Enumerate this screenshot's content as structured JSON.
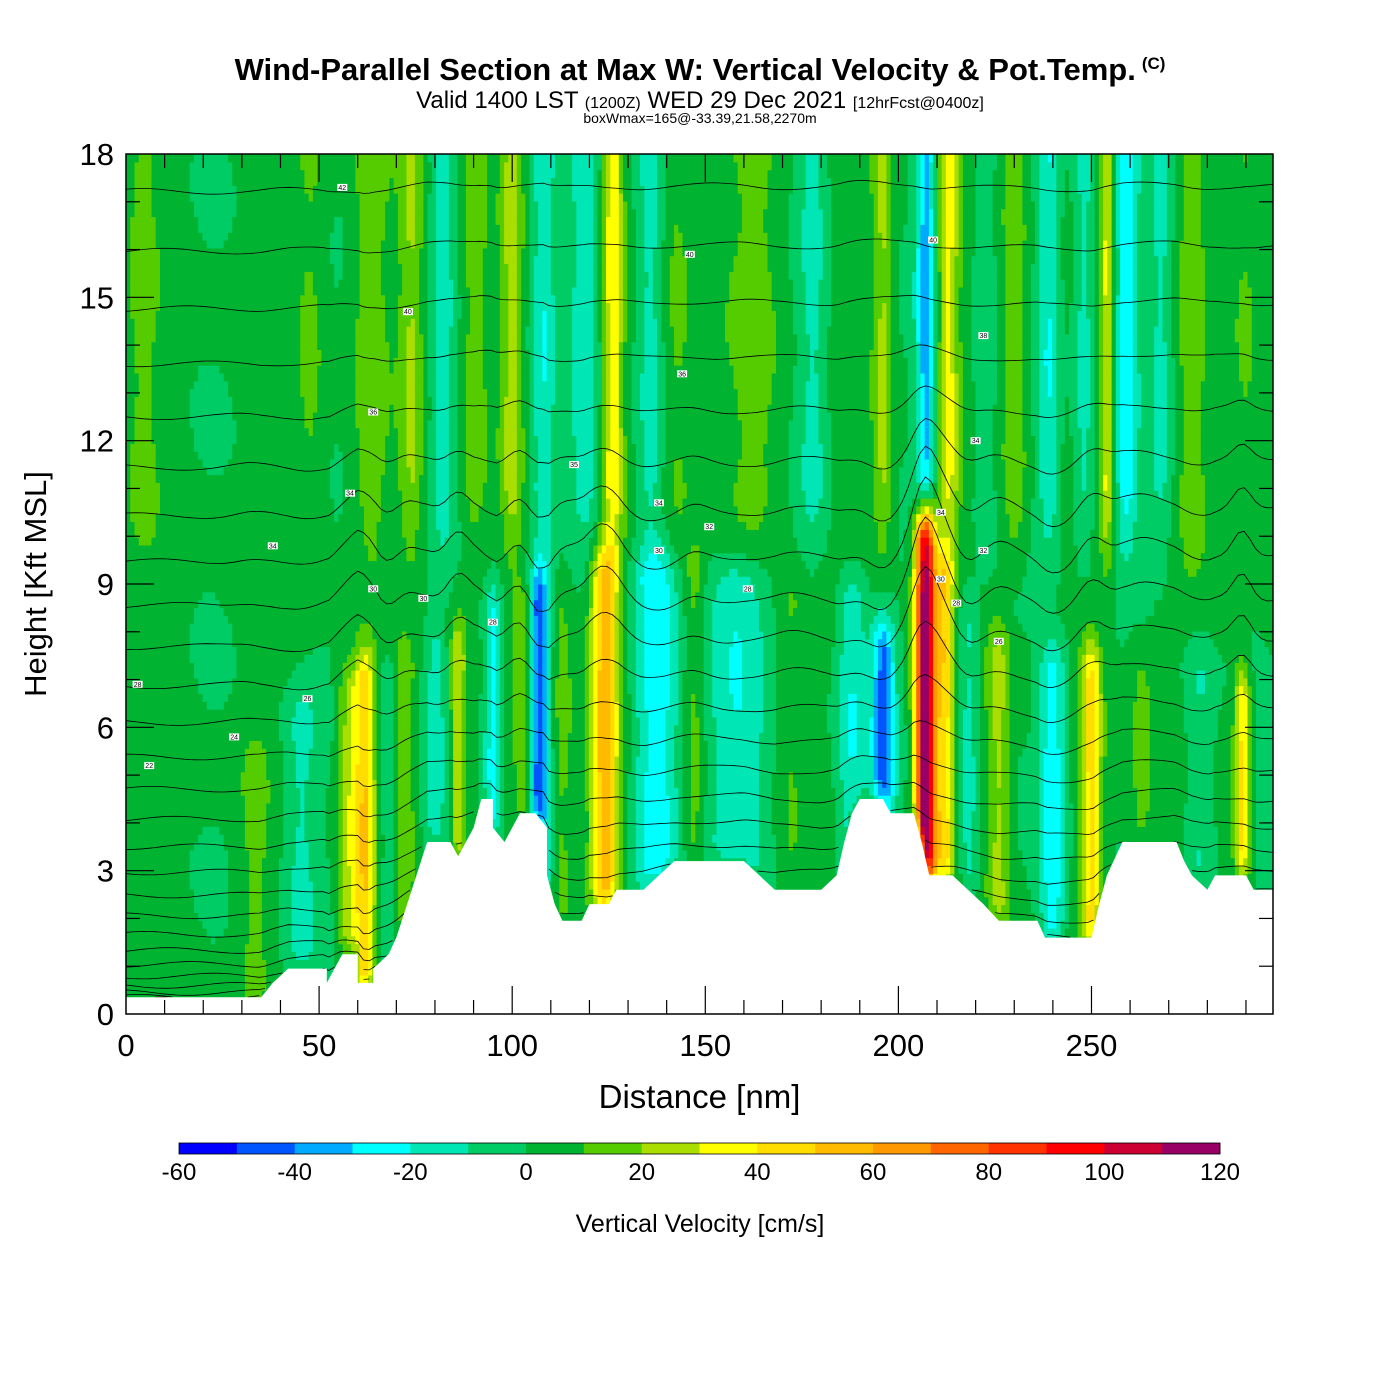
{
  "chart_data": {
    "type": "heatmap",
    "title": "Wind-Parallel Section at Max W: Vertical Velocity & Pot.Temp.",
    "copyright_mark": "(C)",
    "subtitle_main": "Valid 1400 LST",
    "subtitle_utc": "(1200Z)",
    "subtitle_date": "WED 29 Dec 2021",
    "subtitle_run": "[12hrFcst@0400z]",
    "box_info": "boxWmax=165@-33.39,21.58,2270m",
    "xlabel": "Distance [nm]",
    "ylabel": "Height [Kft MSL]",
    "xlim": [
      0,
      297
    ],
    "ylim": [
      0,
      18
    ],
    "xticks": [
      "0",
      "50",
      "100",
      "150",
      "200",
      "250"
    ],
    "yticks": [
      "0",
      "3",
      "6",
      "9",
      "12",
      "15",
      "18"
    ],
    "colorbar": {
      "label": "Vertical Velocity [cm/s]",
      "ticks": [
        "-60",
        "-40",
        "-20",
        "0",
        "20",
        "40",
        "60",
        "80",
        "100",
        "120"
      ],
      "levels": [
        -60,
        -50,
        -40,
        -30,
        -20,
        -10,
        0,
        10,
        20,
        30,
        40,
        50,
        60,
        70,
        80,
        90,
        100,
        110,
        120
      ],
      "colors": [
        "#0000ff",
        "#0055ff",
        "#00aaff",
        "#00ffff",
        "#00e6b4",
        "#00cc66",
        "#00b432",
        "#55cc00",
        "#aadd00",
        "#ffff00",
        "#ffdd00",
        "#ffbb00",
        "#ff9900",
        "#ff6600",
        "#ff3300",
        "#ff0000",
        "#cc0033",
        "#990066"
      ]
    },
    "terrain_kft": [
      [
        0,
        0.35
      ],
      [
        30,
        0.35
      ],
      [
        35,
        0.35
      ],
      [
        38,
        0.65
      ],
      [
        42,
        0.95
      ],
      [
        52,
        0.95
      ],
      [
        52,
        0.65
      ],
      [
        54,
        0.95
      ],
      [
        56,
        1.25
      ],
      [
        60,
        1.25
      ],
      [
        60,
        0.65
      ],
      [
        64,
        0.65
      ],
      [
        64,
        0.95
      ],
      [
        68,
        1.25
      ],
      [
        70,
        1.6
      ],
      [
        74,
        2.6
      ],
      [
        78,
        3.6
      ],
      [
        84,
        3.6
      ],
      [
        86,
        3.3
      ],
      [
        88,
        3.6
      ],
      [
        90,
        3.9
      ],
      [
        92,
        4.5
      ],
      [
        95,
        4.5
      ],
      [
        95,
        3.9
      ],
      [
        98,
        3.6
      ],
      [
        102,
        4.2
      ],
      [
        106,
        4.2
      ],
      [
        109,
        3.9
      ],
      [
        109,
        2.9
      ],
      [
        111,
        2.3
      ],
      [
        113,
        1.95
      ],
      [
        118,
        1.95
      ],
      [
        120,
        2.3
      ],
      [
        125,
        2.3
      ],
      [
        127,
        2.6
      ],
      [
        134,
        2.6
      ],
      [
        138,
        2.9
      ],
      [
        142,
        3.2
      ],
      [
        160,
        3.2
      ],
      [
        164,
        2.9
      ],
      [
        168,
        2.6
      ],
      [
        180,
        2.6
      ],
      [
        184,
        2.9
      ],
      [
        186,
        3.6
      ],
      [
        188,
        4.2
      ],
      [
        190,
        4.5
      ],
      [
        196,
        4.5
      ],
      [
        198,
        4.2
      ],
      [
        204,
        4.2
      ],
      [
        206,
        3.6
      ],
      [
        208,
        2.9
      ],
      [
        214,
        2.9
      ],
      [
        218,
        2.6
      ],
      [
        222,
        2.3
      ],
      [
        226,
        1.95
      ],
      [
        236,
        1.95
      ],
      [
        238,
        1.6
      ],
      [
        250,
        1.6
      ],
      [
        252,
        2.3
      ],
      [
        254,
        2.9
      ],
      [
        258,
        3.6
      ],
      [
        272,
        3.6
      ],
      [
        274,
        3.2
      ],
      [
        276,
        2.9
      ],
      [
        280,
        2.6
      ],
      [
        282,
        2.9
      ],
      [
        290,
        2.9
      ],
      [
        292,
        2.6
      ],
      [
        297,
        2.6
      ]
    ],
    "w_columns": [
      {
        "x": 33,
        "w": 4,
        "peak": 8,
        "top": 5.0
      },
      {
        "x": 45,
        "w": 5,
        "peak": -15,
        "top": 6.0
      },
      {
        "x": 58,
        "w": 3,
        "peak": 25,
        "top": 6.5
      },
      {
        "x": 62,
        "w": 2.5,
        "peak": 42,
        "top": 6.8
      },
      {
        "x": 68,
        "w": 3,
        "peak": -12,
        "top": 7.0
      },
      {
        "x": 72,
        "w": 2.5,
        "peak": 15,
        "top": 7.0
      },
      {
        "x": 80,
        "w": 3,
        "peak": -15,
        "top": 7.5
      },
      {
        "x": 86,
        "w": 2,
        "peak": 28,
        "top": 7.5
      },
      {
        "x": 95,
        "w": 2.5,
        "peak": -28,
        "top": 8.2
      },
      {
        "x": 103,
        "w": 2.5,
        "peak": 15,
        "top": 8.3
      },
      {
        "x": 107,
        "w": 2.5,
        "peak": -50,
        "top": 8.5
      },
      {
        "x": 113,
        "w": 3,
        "peak": 12,
        "top": 8.5
      },
      {
        "x": 124,
        "w": 3.5,
        "peak": 52,
        "top": 9.0
      },
      {
        "x": 137,
        "w": 6,
        "peak": -28,
        "top": 9.0
      },
      {
        "x": 147,
        "w": 3,
        "peak": 15,
        "top": 9.0
      },
      {
        "x": 158,
        "w": 8,
        "peak": -25,
        "top": 8.8
      },
      {
        "x": 172,
        "w": 4,
        "peak": 10,
        "top": 8.5
      },
      {
        "x": 188,
        "w": 4,
        "peak": -25,
        "top": 8.5
      },
      {
        "x": 196,
        "w": 3,
        "peak": -45,
        "top": 7.5
      },
      {
        "x": 207,
        "w": 2.6,
        "peak": 122,
        "top": 9.8
      },
      {
        "x": 212,
        "w": 2.5,
        "peak": 40,
        "top": 9.0
      },
      {
        "x": 218,
        "w": 3,
        "peak": -18,
        "top": 8.0
      },
      {
        "x": 226,
        "w": 3,
        "peak": 20,
        "top": 7.5
      },
      {
        "x": 240,
        "w": 3.5,
        "peak": -30,
        "top": 7.0
      },
      {
        "x": 250,
        "w": 2.5,
        "peak": 38,
        "top": 7.0
      },
      {
        "x": 263,
        "w": 3.5,
        "peak": 12,
        "top": 7.0
      },
      {
        "x": 278,
        "w": 4,
        "peak": -15,
        "top": 7.0
      },
      {
        "x": 289,
        "w": 2,
        "peak": 40,
        "top": 6.5
      },
      {
        "x": 296,
        "w": 3,
        "peak": -10,
        "top": 6.0
      }
    ],
    "w_upper_bands": [
      {
        "x": 4,
        "w": 4,
        "v": 8
      },
      {
        "x": 48,
        "w": 4,
        "v": 10
      },
      {
        "x": 63,
        "w": 4,
        "v": 12
      },
      {
        "x": 74,
        "w": 3,
        "v": 18
      },
      {
        "x": 82,
        "w": 3,
        "v": -15
      },
      {
        "x": 90,
        "w": 3,
        "v": 12
      },
      {
        "x": 100,
        "w": 2.5,
        "v": 20
      },
      {
        "x": 108,
        "w": 3,
        "v": -20
      },
      {
        "x": 119,
        "w": 4,
        "v": -20
      },
      {
        "x": 126,
        "w": 2.5,
        "v": 32
      },
      {
        "x": 136,
        "w": 4,
        "v": -18
      },
      {
        "x": 142,
        "w": 5,
        "v": 12
      },
      {
        "x": 164,
        "w": 7,
        "v": 10
      },
      {
        "x": 178,
        "w": 4,
        "v": -15
      },
      {
        "x": 196,
        "w": 2.5,
        "v": 20
      },
      {
        "x": 207,
        "w": 2.5,
        "v": -35
      },
      {
        "x": 213,
        "w": 2.5,
        "v": 28
      },
      {
        "x": 222,
        "w": 3,
        "v": -12
      },
      {
        "x": 230,
        "w": 3,
        "v": 18
      },
      {
        "x": 239,
        "w": 3,
        "v": -22
      },
      {
        "x": 248,
        "w": 3,
        "v": -18
      },
      {
        "x": 254,
        "w": 2,
        "v": 28
      },
      {
        "x": 259,
        "w": 3,
        "v": -28
      },
      {
        "x": 268,
        "w": 3,
        "v": -15
      },
      {
        "x": 276,
        "w": 3,
        "v": 12
      },
      {
        "x": 290,
        "w": 4,
        "v": 10
      }
    ],
    "isentropes": {
      "count": 34,
      "contour_labels": [
        {
          "x": 56,
          "y": 17.3,
          "text": "42"
        },
        {
          "x": 146,
          "y": 15.9,
          "text": "40"
        },
        {
          "x": 209,
          "y": 16.2,
          "text": "40"
        },
        {
          "x": 73,
          "y": 14.7,
          "text": "40"
        },
        {
          "x": 222,
          "y": 14.2,
          "text": "38"
        },
        {
          "x": 144,
          "y": 13.4,
          "text": "36"
        },
        {
          "x": 64,
          "y": 12.6,
          "text": "36"
        },
        {
          "x": 220,
          "y": 12.0,
          "text": "34"
        },
        {
          "x": 116,
          "y": 11.5,
          "text": "35"
        },
        {
          "x": 58,
          "y": 10.9,
          "text": "34"
        },
        {
          "x": 138,
          "y": 10.7,
          "text": "34"
        },
        {
          "x": 151,
          "y": 10.2,
          "text": "32"
        },
        {
          "x": 211,
          "y": 10.5,
          "text": "34"
        },
        {
          "x": 38,
          "y": 9.8,
          "text": "34"
        },
        {
          "x": 138,
          "y": 9.7,
          "text": "30"
        },
        {
          "x": 222,
          "y": 9.7,
          "text": "32"
        },
        {
          "x": 211,
          "y": 9.1,
          "text": "30"
        },
        {
          "x": 64,
          "y": 8.9,
          "text": "30"
        },
        {
          "x": 77,
          "y": 8.7,
          "text": "30"
        },
        {
          "x": 161,
          "y": 8.9,
          "text": "28"
        },
        {
          "x": 215,
          "y": 8.6,
          "text": "28"
        },
        {
          "x": 95,
          "y": 8.2,
          "text": "28"
        },
        {
          "x": 226,
          "y": 7.8,
          "text": "26"
        },
        {
          "x": 3,
          "y": 6.9,
          "text": "28"
        },
        {
          "x": 47,
          "y": 6.6,
          "text": "26"
        },
        {
          "x": 28,
          "y": 5.8,
          "text": "24"
        },
        {
          "x": 6,
          "y": 5.2,
          "text": "22"
        }
      ]
    }
  }
}
